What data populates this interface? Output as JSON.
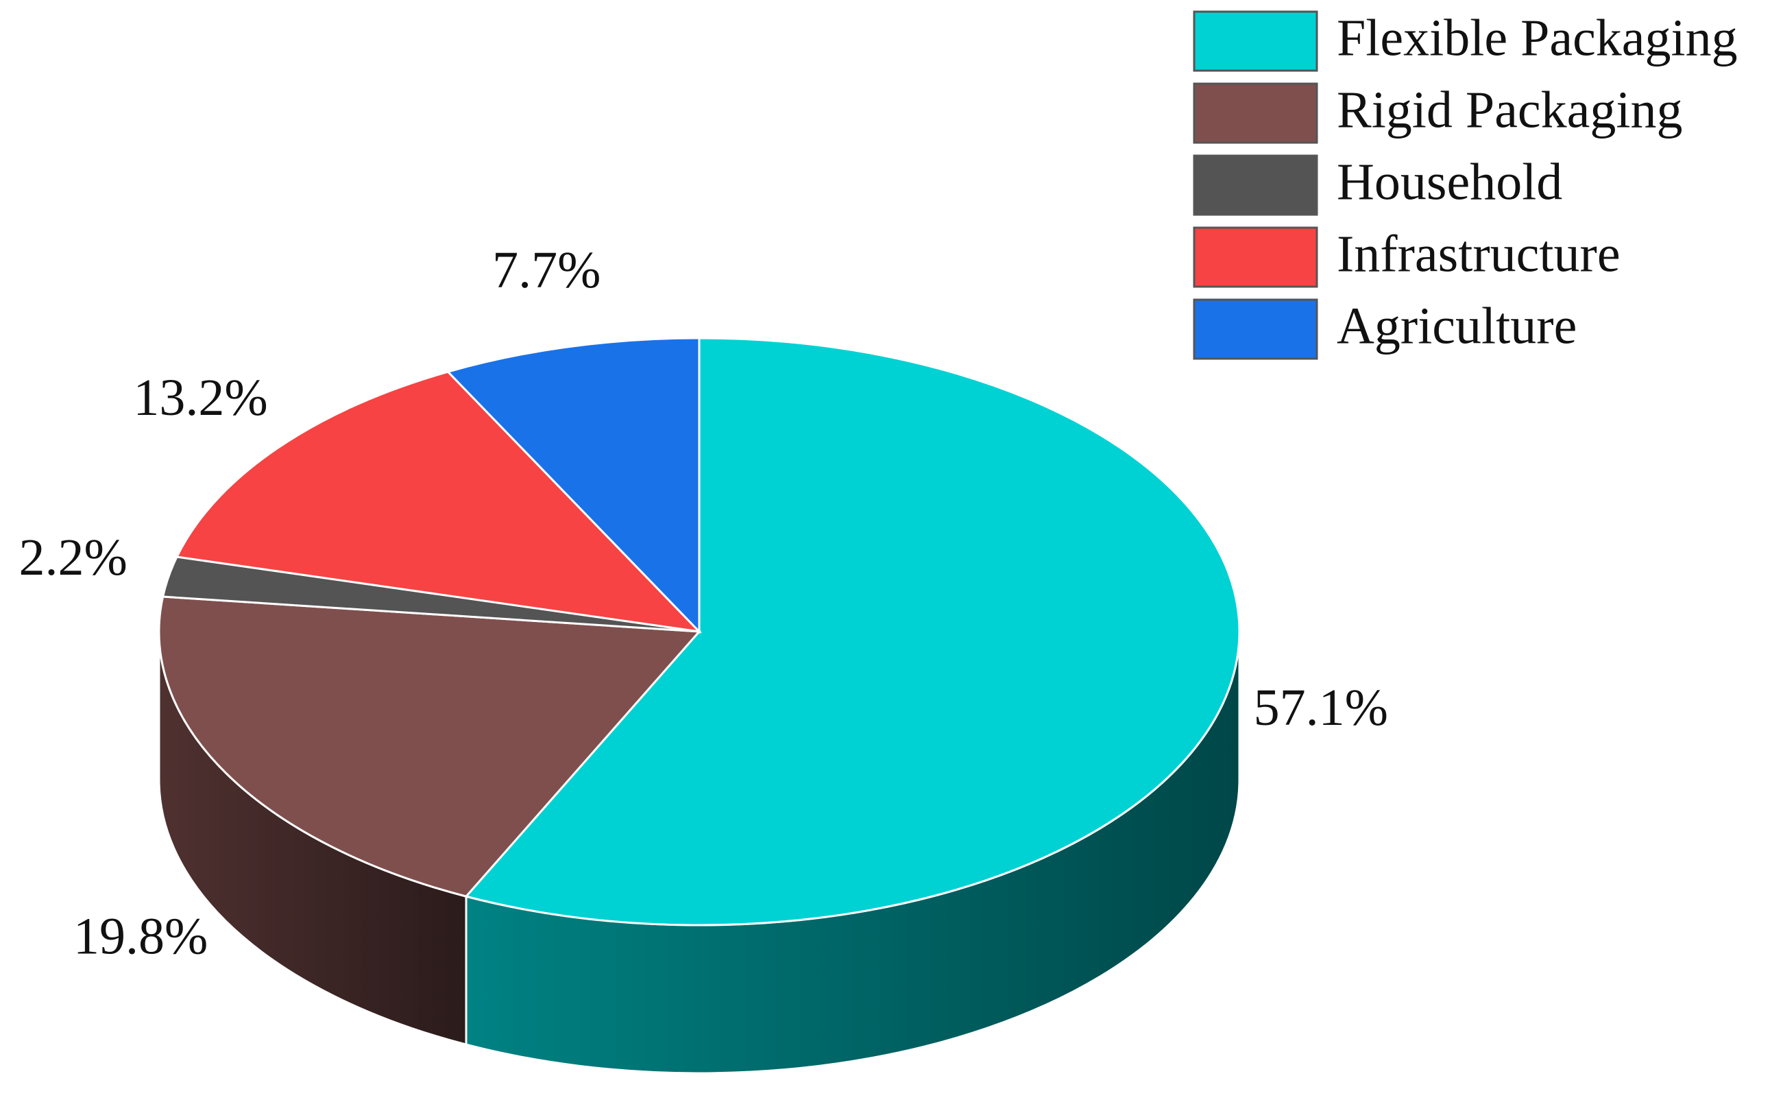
{
  "chart_data": {
    "type": "pie3d",
    "categories": [
      "Flexible Packaging",
      "Rigid Packaging",
      "Household",
      "Infrastructure",
      "Agriculture"
    ],
    "values": [
      57.1,
      19.8,
      2.2,
      13.2,
      7.7
    ],
    "value_labels": [
      "57.1%",
      "19.8%",
      "2.2%",
      "13.2%",
      "7.7%"
    ],
    "colors": [
      "#00d2d3",
      "#7f4f4e",
      "#545454",
      "#f74343",
      "#1a72e8"
    ],
    "legend": "upper right"
  }
}
